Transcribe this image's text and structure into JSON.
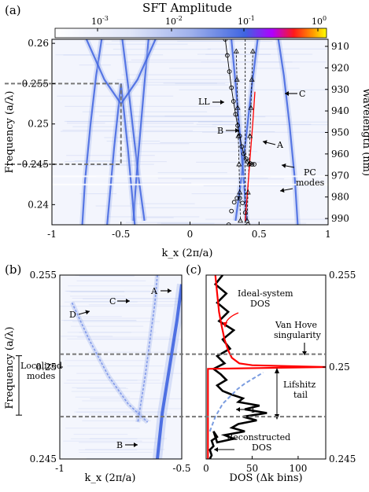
{
  "chart_data": [
    {
      "panel": "(a)",
      "type": "heatmap",
      "colorbar": {
        "title": "SFT Amplitude",
        "scale": "log",
        "tick_labels": [
          "10^-3",
          "10^-2",
          "10^-1",
          "10^0"
        ],
        "colors": [
          "#ffffff",
          "#b9c6ee",
          "#3f64e0",
          "#c000ff",
          "#ff0000",
          "#ffff00"
        ]
      },
      "xlabel": "k_x (2π/a)",
      "ylabel": "Frequency (a/λ)",
      "y2label": "Wavelength (nm)",
      "xlim": [
        -1,
        1
      ],
      "ylim": [
        0.2375,
        0.2605
      ],
      "xticks": [
        "-1",
        "-0.5",
        "0",
        "0.5",
        "1"
      ],
      "yticks": [
        "0.24",
        "0.245",
        "0.25",
        "0.255",
        "0.26"
      ],
      "y2ticks": [
        "910",
        "920",
        "930",
        "940",
        "950",
        "960",
        "970",
        "980",
        "990"
      ],
      "annotations": [
        "LL",
        "C",
        "B",
        "A",
        "PC",
        "modes"
      ],
      "bands": [
        {
          "name": "C",
          "x": [
            0.78,
            0.76,
            0.72,
            0.68,
            0.64
          ],
          "y": [
            0.2375,
            0.243,
            0.25,
            0.256,
            0.2605
          ]
        },
        {
          "name": "C-left",
          "x": [
            -0.78,
            -0.76,
            -0.72,
            -0.68,
            -0.64
          ],
          "y": [
            0.2375,
            0.243,
            0.25,
            0.256,
            0.2605
          ]
        },
        {
          "name": "A",
          "x": [
            0.33,
            0.37,
            0.41,
            0.45,
            0.49
          ],
          "y": [
            0.238,
            0.243,
            0.249,
            0.255,
            0.2605
          ]
        },
        {
          "name": "A-left",
          "x": [
            -0.33,
            -0.37,
            -0.41,
            -0.45,
            -0.49
          ],
          "y": [
            0.238,
            0.243,
            0.249,
            0.255,
            0.2605
          ]
        },
        {
          "name": "B",
          "x": [
            0.41,
            0.39,
            0.36,
            0.33,
            0.3
          ],
          "y": [
            0.238,
            0.243,
            0.249,
            0.255,
            0.2605
          ]
        },
        {
          "name": "B-left",
          "x": [
            -0.41,
            -0.39,
            -0.36,
            -0.33,
            -0.3
          ],
          "y": [
            0.238,
            0.243,
            0.249,
            0.255,
            0.2605
          ]
        },
        {
          "name": "V1",
          "x": [
            -0.6,
            -0.55,
            -0.5,
            -0.45,
            -0.4
          ],
          "y": [
            0.2375,
            0.247,
            0.255,
            0.247,
            0.2375
          ]
        },
        {
          "name": "V2",
          "x": [
            -0.75,
            -0.62,
            -0.5,
            -0.38,
            -0.25
          ],
          "y": [
            0.2605,
            0.2555,
            0.2525,
            0.2555,
            0.2605
          ]
        }
      ],
      "ll_circles": {
        "x": [
          0.255,
          0.27,
          0.285,
          0.3,
          0.315,
          0.33,
          0.345,
          0.36,
          0.375,
          0.39,
          0.405,
          0.42,
          0.435,
          0.45,
          0.465
        ],
        "y": [
          0.2605,
          0.2585,
          0.2565,
          0.2545,
          0.2528,
          0.2512,
          0.2498,
          0.2485,
          0.2472,
          0.2463,
          0.2457,
          0.2453,
          0.2451,
          0.245,
          0.245
        ]
      },
      "ll_lower_circles": {
        "x": [
          0.28,
          0.3,
          0.32,
          0.34,
          0.36,
          0.38,
          0.4,
          0.42
        ],
        "y": [
          0.2375,
          0.2392,
          0.2403,
          0.2408,
          0.2408,
          0.2402,
          0.239,
          0.2375
        ]
      },
      "triangles_left": {
        "x": [
          0.335,
          0.34,
          0.345,
          0.35,
          0.355,
          0.36,
          0.365
        ],
        "y": [
          0.259,
          0.2555,
          0.252,
          0.2485,
          0.245,
          0.2415,
          0.238
        ]
      },
      "triangles_right": {
        "x": [
          0.455,
          0.448,
          0.441,
          0.434,
          0.427,
          0.42,
          0.413
        ],
        "y": [
          0.259,
          0.2555,
          0.252,
          0.2485,
          0.245,
          0.2415,
          0.238
        ]
      },
      "red_line": {
        "x": [
          0.4,
          0.418,
          0.436,
          0.454,
          0.47
        ],
        "y": [
          0.238,
          0.242,
          0.246,
          0.25,
          0.254
        ]
      },
      "zoom_box": {
        "x": [
          -1,
          -0.5
        ],
        "y": [
          0.245,
          0.255
        ]
      },
      "hlines": [
        0.2435,
        0.2425
      ]
    },
    {
      "panel": "(b)",
      "type": "heatmap",
      "xlabel": "k_x (2π/a)",
      "ylabel": "Frequency (a/λ)",
      "xlim": [
        -1,
        -0.5
      ],
      "ylim": [
        0.245,
        0.255
      ],
      "xticks": [
        "-1",
        "-0.5"
      ],
      "yticks": [
        "0.245",
        "0.25",
        "0.255"
      ],
      "annotations": [
        "A",
        "C",
        "D",
        "B",
        "Localized",
        "modes"
      ],
      "dashed_lines_y": [
        0.2507,
        0.2473
      ],
      "bands": [
        {
          "name": "A",
          "x": [
            -0.5,
            -0.52,
            -0.55,
            -0.58,
            -0.6
          ],
          "y": [
            0.2545,
            0.2525,
            0.25,
            0.2475,
            0.245
          ]
        },
        {
          "name": "C",
          "x": [
            -0.6,
            -0.61,
            -0.63,
            -0.65,
            -0.68
          ],
          "y": [
            0.255,
            0.2535,
            0.2515,
            0.2495,
            0.247
          ]
        },
        {
          "name": "D",
          "x": [
            -0.95,
            -0.88,
            -0.8,
            -0.72,
            -0.64
          ],
          "y": [
            0.2535,
            0.2515,
            0.2495,
            0.248,
            0.247
          ]
        }
      ]
    },
    {
      "panel": "(c)",
      "type": "line",
      "xlabel": "DOS (Δk bins)",
      "y2label": "",
      "xlim": [
        0,
        130
      ],
      "ylim": [
        0.245,
        0.255
      ],
      "xticks": [
        "0",
        "50",
        "100"
      ],
      "y2ticks": [
        "0.245",
        "0.25",
        "0.255"
      ],
      "annotations": [
        "Ideal-system",
        "DOS",
        "Van Hove",
        "singularity",
        "Lifshitz",
        "tail",
        "Reconstructed",
        "DOS",
        "1"
      ],
      "dashed_lines_y": [
        0.2507,
        0.2473
      ],
      "series": [
        {
          "name": "Reconstructed DOS",
          "color": "#000000",
          "x": [
            18,
            10,
            22,
            12,
            24,
            14,
            30,
            18,
            26,
            12,
            20,
            8,
            16,
            22,
            12,
            18,
            28,
            40,
            35,
            58,
            42,
            66,
            40,
            55,
            35,
            28,
            42,
            20,
            30,
            12,
            8,
            12,
            6,
            8,
            4,
            6,
            4
          ],
          "y": [
            0.255,
            0.2545,
            0.254,
            0.2535,
            0.253,
            0.2525,
            0.252,
            0.2515,
            0.251,
            0.2506,
            0.2502,
            0.2499,
            0.2496,
            0.2493,
            0.249,
            0.2487,
            0.2485,
            0.2483,
            0.2481,
            0.2479,
            0.2477,
            0.2475,
            0.2473,
            0.2471,
            0.2469,
            0.2467,
            0.2465,
            0.2463,
            0.2461,
            0.2459,
            0.2465,
            0.2462,
            0.246,
            0.2457,
            0.2455,
            0.2452,
            0.245
          ]
        },
        {
          "name": "Ideal-system DOS",
          "color": "#ff0000",
          "x": [
            10,
            12,
            14,
            17,
            20,
            24,
            28,
            36,
            50,
            130,
            2,
            2,
            2
          ],
          "y": [
            0.255,
            0.254,
            0.253,
            0.2522,
            0.2515,
            0.2509,
            0.2505,
            0.2502,
            0.2501,
            0.25,
            0.2499,
            0.247,
            0.245
          ]
        },
        {
          "name": "Lifshitz tail",
          "color": "#7a9ce0",
          "x": [
            4,
            10,
            18,
            26,
            34,
            42,
            52,
            62
          ],
          "y": [
            0.2465,
            0.2473,
            0.248,
            0.2484,
            0.2488,
            0.2491,
            0.2494,
            0.2497
          ]
        }
      ]
    }
  ]
}
